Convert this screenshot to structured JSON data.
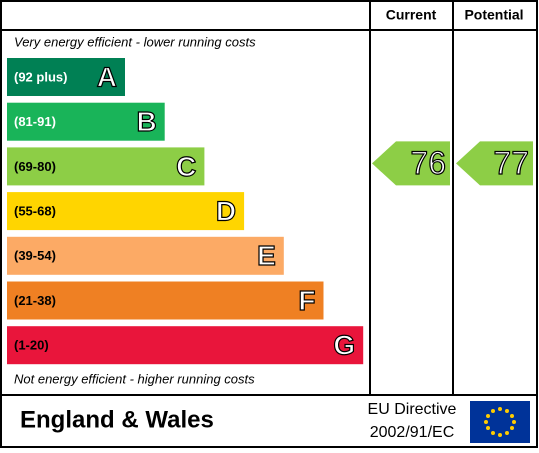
{
  "header": {
    "current": "Current",
    "potential": "Potential"
  },
  "top_note": "Very energy efficient - lower running costs",
  "bottom_note": "Not energy efficient - higher running costs",
  "bands": [
    {
      "range": "(92 plus)",
      "letter": "A",
      "color": "#008054"
    },
    {
      "range": "(81-91)",
      "letter": "B",
      "color": "#19b459"
    },
    {
      "range": "(69-80)",
      "letter": "C",
      "color": "#8dce46"
    },
    {
      "range": "(55-68)",
      "letter": "D",
      "color": "#ffd500"
    },
    {
      "range": "(39-54)",
      "letter": "E",
      "color": "#fcaa65"
    },
    {
      "range": "(21-38)",
      "letter": "F",
      "color": "#ef8023"
    },
    {
      "range": "(1-20)",
      "letter": "G",
      "color": "#e9153b"
    }
  ],
  "ratings": {
    "current": 76,
    "potential": 77
  },
  "footer": {
    "region": "England & Wales",
    "directive_line1": "EU Directive",
    "directive_line2": "2002/91/EC"
  }
}
